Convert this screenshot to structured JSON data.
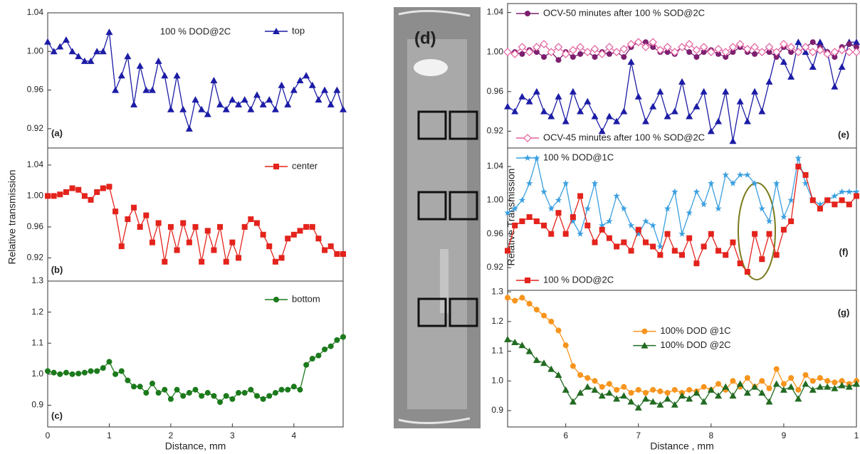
{
  "chart_data": [
    {
      "type": "line",
      "panel": "(a)",
      "annotation": "100 % DOD@2C",
      "legend": "upper right",
      "xlim": [
        0,
        4.8
      ],
      "ylim": [
        0.9,
        1.04
      ],
      "yticks": [
        0.92,
        0.96,
        {
          "value": 1,
          "label": "1.00"
        },
        1.04
      ],
      "x": [
        0,
        0.1,
        0.2,
        0.3,
        0.4,
        0.5,
        0.6,
        0.7,
        0.8,
        0.9,
        1,
        1.1,
        1.2,
        1.3,
        1.4,
        1.5,
        1.6,
        1.7,
        1.8,
        1.9,
        2,
        2.1,
        2.2,
        2.3,
        2.4,
        2.5,
        2.6,
        2.7,
        2.8,
        2.9,
        3,
        3.1,
        3.2,
        3.3,
        3.4,
        3.5,
        3.6,
        3.7,
        3.8,
        3.9,
        4,
        4.1,
        4.2,
        4.3,
        4.4,
        4.5,
        4.6,
        4.7,
        4.8
      ],
      "series": [
        {
          "name": "top",
          "color": "#1c1ca6",
          "marker": "triangle",
          "values": [
            1.01,
            1.0,
            1.005,
            1.012,
            1.0,
            0.995,
            0.99,
            0.99,
            1.0,
            1.0,
            1.02,
            0.96,
            0.975,
            0.995,
            0.945,
            0.985,
            0.96,
            0.96,
            0.99,
            0.975,
            0.94,
            0.975,
            0.94,
            0.92,
            0.95,
            0.94,
            0.935,
            0.97,
            0.945,
            0.94,
            0.95,
            0.945,
            0.95,
            0.94,
            0.955,
            0.945,
            0.95,
            0.94,
            0.965,
            0.945,
            0.96,
            0.97,
            0.975,
            0.965,
            0.95,
            0.96,
            0.945,
            0.96,
            0.94
          ]
        }
      ]
    },
    {
      "type": "line",
      "panel": "(b)",
      "legend": "upper right",
      "ylabel": "Relative transmission",
      "xlim": [
        0,
        4.8
      ],
      "ylim": [
        0.89,
        1.062
      ],
      "yticks": [
        0.92,
        0.96,
        {
          "value": 1,
          "label": "1.00"
        },
        1.04
      ],
      "x": [
        0,
        0.1,
        0.2,
        0.3,
        0.4,
        0.5,
        0.6,
        0.7,
        0.8,
        0.9,
        1,
        1.1,
        1.2,
        1.3,
        1.4,
        1.5,
        1.6,
        1.7,
        1.8,
        1.9,
        2,
        2.1,
        2.2,
        2.3,
        2.4,
        2.5,
        2.6,
        2.7,
        2.8,
        2.9,
        3,
        3.1,
        3.2,
        3.3,
        3.4,
        3.5,
        3.6,
        3.7,
        3.8,
        3.9,
        4,
        4.1,
        4.2,
        4.3,
        4.4,
        4.5,
        4.6,
        4.7,
        4.8
      ],
      "series": [
        {
          "name": "center",
          "color": "#e3231c",
          "marker": "square",
          "values": [
            1.0,
            1.0,
            1.002,
            1.005,
            1.01,
            1.008,
            1.0,
            0.995,
            1.005,
            1.01,
            1.012,
            0.98,
            0.935,
            0.97,
            0.985,
            0.96,
            0.975,
            0.94,
            0.965,
            0.915,
            0.96,
            0.93,
            0.965,
            0.94,
            0.96,
            0.915,
            0.955,
            0.93,
            0.96,
            0.915,
            0.94,
            0.92,
            0.96,
            0.97,
            0.965,
            0.95,
            0.935,
            0.915,
            0.92,
            0.945,
            0.95,
            0.955,
            0.96,
            0.96,
            0.945,
            0.93,
            0.935,
            0.925,
            0.925
          ]
        }
      ]
    },
    {
      "type": "line",
      "panel": "(c)",
      "legend": "upper right",
      "xlabel": "Distance, mm",
      "xlim": [
        0,
        4.8
      ],
      "xticks": [
        0,
        1,
        2,
        3,
        4
      ],
      "ylim": [
        0.83,
        1.3
      ],
      "yticks": [
        0.9,
        {
          "value": 1,
          "label": "1.0"
        },
        1.1,
        1.2,
        1.3
      ],
      "x": [
        0,
        0.1,
        0.2,
        0.3,
        0.4,
        0.5,
        0.6,
        0.7,
        0.8,
        0.9,
        1,
        1.1,
        1.2,
        1.3,
        1.4,
        1.5,
        1.6,
        1.7,
        1.8,
        1.9,
        2,
        2.1,
        2.2,
        2.3,
        2.4,
        2.5,
        2.6,
        2.7,
        2.8,
        2.9,
        3,
        3.1,
        3.2,
        3.3,
        3.4,
        3.5,
        3.6,
        3.7,
        3.8,
        3.9,
        4,
        4.1,
        4.2,
        4.3,
        4.4,
        4.5,
        4.6,
        4.7,
        4.8
      ],
      "series": [
        {
          "name": "bottom",
          "color": "#1b7a1b",
          "marker": "circle",
          "values": [
            1.01,
            1.005,
            1.0,
            1.005,
            1.0,
            1.002,
            1.005,
            1.01,
            1.01,
            1.02,
            1.04,
            1.0,
            1.01,
            0.98,
            0.96,
            0.96,
            0.94,
            0.97,
            0.94,
            0.95,
            0.92,
            0.95,
            0.93,
            0.94,
            0.95,
            0.93,
            0.94,
            0.93,
            0.91,
            0.93,
            0.92,
            0.94,
            0.94,
            0.95,
            0.93,
            0.92,
            0.93,
            0.94,
            0.95,
            0.95,
            0.96,
            0.95,
            1.03,
            1.05,
            1.06,
            1.08,
            1.09,
            1.11,
            1.12
          ]
        }
      ]
    },
    {
      "type": "line",
      "panel": "(e)",
      "xlim": [
        5.2,
        10
      ],
      "ylim": [
        0.903,
        1.049
      ],
      "yticks": [
        0.92,
        0.96,
        {
          "value": 1,
          "label": "1.00"
        },
        1.04
      ],
      "x": [
        5.2,
        5.3,
        5.4,
        5.5,
        5.6,
        5.7,
        5.8,
        5.9,
        6,
        6.1,
        6.2,
        6.3,
        6.4,
        6.5,
        6.6,
        6.7,
        6.8,
        6.9,
        7,
        7.1,
        7.2,
        7.3,
        7.4,
        7.5,
        7.6,
        7.7,
        7.8,
        7.9,
        8,
        8.1,
        8.2,
        8.3,
        8.4,
        8.5,
        8.6,
        8.7,
        8.8,
        8.9,
        9,
        9.1,
        9.2,
        9.3,
        9.4,
        9.5,
        9.6,
        9.7,
        9.8,
        9.9,
        10
      ],
      "series": [
        {
          "color": "#1c1ca6",
          "marker": "triangle",
          "values": [
            0.945,
            0.94,
            0.955,
            0.95,
            0.96,
            0.94,
            0.935,
            0.955,
            0.93,
            0.96,
            0.94,
            0.95,
            0.935,
            0.92,
            0.935,
            0.93,
            0.94,
            0.99,
            0.955,
            0.93,
            0.945,
            0.96,
            0.935,
            0.94,
            0.97,
            0.935,
            0.945,
            0.96,
            0.92,
            0.93,
            0.96,
            0.91,
            0.95,
            0.93,
            0.96,
            0.94,
            0.97,
            1.0,
            0.99,
            0.975,
            1.01,
            1.0,
            0.985,
            1.01,
            1.0,
            0.965,
            0.985,
            1.01,
            1.01
          ]
        },
        {
          "name": "OCV-50 minutes after 100 % SOD@2C",
          "color": "#7d1f6f",
          "marker": "circle",
          "legend": "upper left",
          "values": [
            1.0,
            1.0,
            0.998,
            1.002,
            1.0,
            0.995,
            1.0,
            0.992,
            1.0,
            0.995,
            0.998,
            1.0,
            0.995,
            1.0,
            0.998,
            1.0,
            0.995,
            1.005,
            1.01,
            1.01,
            1.005,
            1.0,
            1.0,
            0.998,
            1.005,
            1.0,
            0.995,
            1.0,
            1.002,
            0.998,
            0.995,
            1.0,
            1.005,
            1.0,
            0.998,
            1.0,
            1.0,
            0.995,
            1.005,
            1.0,
            1.0,
            1.005,
            1.01,
            1.005,
            1.0,
            0.995,
            1.005,
            1.008,
            1.005
          ]
        },
        {
          "name": "OCV-45 minutes after 100 % SOD@2C",
          "color": "#e0609e",
          "marker": "diamond",
          "legend": "lower left",
          "values": [
            1.0,
            0.998,
            1.005,
            1.0,
            1.005,
            1.008,
            1.0,
            1.005,
            0.998,
            1.002,
            1.005,
            1.0,
            1.003,
            0.998,
            1.005,
            1.0,
            1.003,
            1.008,
            1.01,
            1.005,
            1.01,
            1.002,
            1.005,
            1.0,
            1.005,
            1.008,
            1.002,
            1.005,
            1.0,
            1.003,
            1.0,
            1.005,
            1.008,
            1.003,
            1.005,
            1.0,
            1.005,
            1.0,
            1.008,
            1.005,
            1.0,
            1.005,
            1.0,
            1.002,
            0.998,
            1.0,
            1.002,
            1.0,
            1.0
          ]
        }
      ]
    },
    {
      "type": "line",
      "panel": "(f)",
      "ylabel": "Relative Transmission",
      "xlim": [
        5.2,
        10
      ],
      "ylim": [
        0.893,
        1.062
      ],
      "yticks": [
        0.92,
        0.96,
        {
          "value": 1,
          "label": "1.00"
        },
        1.04
      ],
      "x": [
        5.2,
        5.3,
        5.4,
        5.5,
        5.6,
        5.7,
        5.8,
        5.9,
        6,
        6.1,
        6.2,
        6.3,
        6.4,
        6.5,
        6.6,
        6.7,
        6.8,
        6.9,
        7,
        7.1,
        7.2,
        7.3,
        7.4,
        7.5,
        7.6,
        7.7,
        7.8,
        7.9,
        8,
        8.1,
        8.2,
        8.3,
        8.4,
        8.5,
        8.6,
        8.7,
        8.8,
        8.9,
        9,
        9.1,
        9.2,
        9.3,
        9.4,
        9.5,
        9.6,
        9.7,
        9.8,
        9.9,
        10
      ],
      "series": [
        {
          "name": "100 % DOD@1C",
          "color": "#3a9fe0",
          "marker": "star",
          "legend": "upper left",
          "values": [
            0.985,
            0.99,
            1.0,
            1.02,
            1.05,
            1.01,
            0.99,
            1.0,
            1.02,
            0.975,
            0.96,
            0.99,
            1.02,
            0.97,
            0.975,
            1.005,
            0.99,
            0.97,
            0.96,
            0.975,
            0.97,
            0.945,
            0.99,
            1.01,
            0.96,
            0.985,
            1.01,
            0.995,
            1.02,
            0.99,
            1.03,
            1.02,
            1.03,
            1.03,
            1.02,
            0.99,
            0.975,
            1.02,
            0.98,
            1.0,
            1.05,
            1.02,
            1.0,
            0.995,
            1.0,
            1.005,
            1.01,
            1.01,
            1.01
          ]
        },
        {
          "name": "100 % DOD@2C",
          "color": "#e3231c",
          "marker": "square",
          "legend": "lower left",
          "values": [
            0.94,
            0.97,
            0.975,
            0.98,
            0.975,
            0.97,
            0.96,
            0.985,
            0.96,
            0.98,
            1.005,
            0.97,
            0.95,
            0.965,
            0.955,
            0.945,
            0.95,
            0.94,
            0.965,
            0.95,
            0.945,
            0.935,
            0.96,
            0.94,
            0.935,
            0.955,
            0.925,
            0.945,
            0.96,
            0.94,
            0.935,
            0.95,
            0.925,
            0.915,
            0.96,
            0.93,
            0.96,
            0.935,
            0.965,
            0.975,
            1.04,
            1.03,
            1.0,
            0.99,
            1.0,
            0.995,
            1.0,
            0.995,
            1.005
          ]
        }
      ]
    },
    {
      "type": "line",
      "panel": "(g)",
      "legend": "center",
      "xlabel": "Distance , mm",
      "xlim": [
        5.2,
        10
      ],
      "xticks": [
        6,
        7,
        8,
        9,
        {
          "value": 10,
          "label": "1"
        }
      ],
      "ylim": [
        0.845,
        1.305
      ],
      "yticks": [
        0.9,
        {
          "value": 1,
          "label": "1.0"
        },
        1.1,
        1.2,
        1.3
      ],
      "x": [
        5.2,
        5.3,
        5.4,
        5.5,
        5.6,
        5.7,
        5.8,
        5.9,
        6,
        6.1,
        6.2,
        6.3,
        6.4,
        6.5,
        6.6,
        6.7,
        6.8,
        6.9,
        7,
        7.1,
        7.2,
        7.3,
        7.4,
        7.5,
        7.6,
        7.7,
        7.8,
        7.9,
        8,
        8.1,
        8.2,
        8.3,
        8.4,
        8.5,
        8.6,
        8.7,
        8.8,
        8.9,
        9,
        9.1,
        9.2,
        9.3,
        9.4,
        9.5,
        9.6,
        9.7,
        9.8,
        9.9,
        10
      ],
      "series": [
        {
          "name": "100% DOD @1C",
          "color": "#f7941d",
          "marker": "circle",
          "values": [
            1.28,
            1.27,
            1.28,
            1.26,
            1.24,
            1.22,
            1.2,
            1.17,
            1.12,
            1.05,
            1.02,
            1.01,
            1.0,
            0.98,
            0.99,
            0.97,
            0.98,
            0.96,
            0.97,
            0.96,
            0.97,
            0.965,
            0.96,
            0.97,
            0.96,
            0.97,
            0.965,
            0.98,
            0.97,
            0.99,
            0.97,
            1.0,
            0.98,
            1.01,
            0.98,
            1.0,
            0.975,
            1.04,
            0.99,
            1.01,
            0.97,
            1.02,
            1.0,
            1.01,
            1.0,
            0.995,
            1.0,
            0.99,
            1.0
          ]
        },
        {
          "name": "100% DOD @2C",
          "color": "#226b22",
          "marker": "triangle",
          "values": [
            1.14,
            1.13,
            1.12,
            1.1,
            1.07,
            1.06,
            1.04,
            1.02,
            0.97,
            0.93,
            0.96,
            0.98,
            0.97,
            0.95,
            0.96,
            0.94,
            0.95,
            0.93,
            0.91,
            0.94,
            0.93,
            0.92,
            0.94,
            0.92,
            0.95,
            0.94,
            0.96,
            0.93,
            0.97,
            0.95,
            0.98,
            0.95,
            0.99,
            0.96,
            0.98,
            0.96,
            0.93,
            0.99,
            0.97,
            0.98,
            0.94,
            0.99,
            0.97,
            0.98,
            0.98,
            0.975,
            0.985,
            0.98,
            0.99
          ]
        }
      ]
    }
  ],
  "image": {
    "label": "(d)"
  }
}
